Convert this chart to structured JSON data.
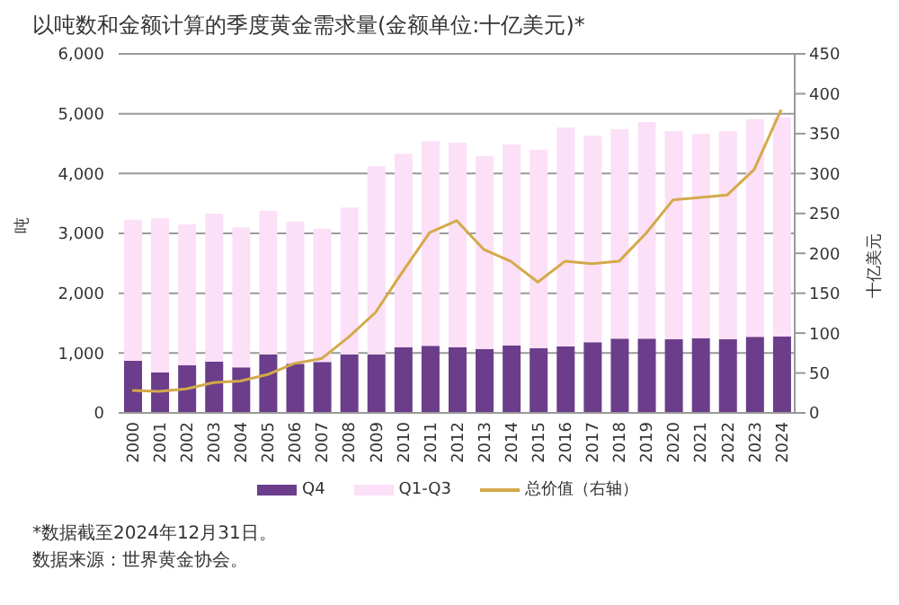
{
  "chart_data": {
    "type": "bar",
    "title": "以吨数和金额计算的季度黄金需求量(金额单位:十亿美元)*",
    "ylabel": "吨",
    "y2label": "十亿美元",
    "categories": [
      "2000",
      "2001",
      "2002",
      "2003",
      "2004",
      "2005",
      "2006",
      "2007",
      "2008",
      "2009",
      "2010",
      "2011",
      "2012",
      "2013",
      "2014",
      "2015",
      "2016",
      "2017",
      "2018",
      "2019",
      "2020",
      "2021",
      "2022",
      "2023",
      "2024"
    ],
    "stacked": true,
    "series": [
      {
        "name": "Q4",
        "color": "#6b3d8a",
        "values": [
          870,
          680,
          800,
          860,
          760,
          980,
          820,
          850,
          980,
          980,
          1100,
          1120,
          1100,
          1070,
          1130,
          1080,
          1110,
          1180,
          1240,
          1240,
          1230,
          1250,
          1230,
          1270,
          1280
        ]
      },
      {
        "name": "Q1-Q3",
        "color": "#fbe0f7",
        "values": [
          2360,
          2570,
          2350,
          2470,
          2340,
          2400,
          2380,
          2230,
          2450,
          3140,
          3230,
          3420,
          3420,
          3220,
          3360,
          3320,
          3660,
          3450,
          3500,
          3620,
          3480,
          3410,
          3480,
          3640,
          3660
        ]
      },
      {
        "name": "总价值（右轴）",
        "type": "line",
        "axis": "y2",
        "color": "#d4a94a",
        "values": [
          28,
          27,
          30,
          38,
          40,
          48,
          62,
          68,
          95,
          126,
          177,
          226,
          241,
          205,
          190,
          164,
          190,
          187,
          190,
          225,
          267,
          270,
          273,
          305,
          380
        ]
      }
    ],
    "ylim": [
      0,
      6000
    ],
    "yticks": [
      {
        "value": 0,
        "label": "0"
      },
      {
        "value": 1000,
        "label": "1,000"
      },
      {
        "value": 2000,
        "label": "2,000"
      },
      {
        "value": 3000,
        "label": "3,000"
      },
      {
        "value": 4000,
        "label": "4,000"
      },
      {
        "value": 5000,
        "label": "5,000"
      },
      {
        "value": 6000,
        "label": "6,000"
      }
    ],
    "y2lim": [
      0,
      450
    ],
    "y2ticks": [
      0,
      50,
      100,
      150,
      200,
      250,
      300,
      350,
      400,
      450
    ],
    "grid": "y",
    "legend": "bottom",
    "marker": "none",
    "line_style": "solid",
    "annotations": [
      "*数据截至2024年12月31日。",
      "数据来源：世界黄金协会。"
    ]
  }
}
